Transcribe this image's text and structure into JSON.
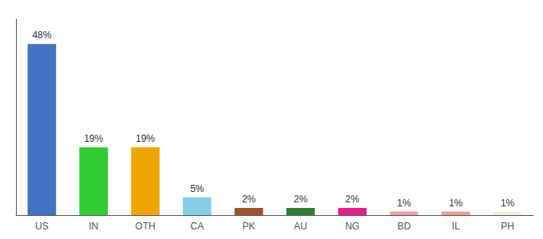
{
  "chart_data": {
    "type": "bar",
    "categories": [
      "US",
      "IN",
      "OTH",
      "CA",
      "PK",
      "AU",
      "NG",
      "BD",
      "IL",
      "PH"
    ],
    "values": [
      48,
      19,
      19,
      5,
      2,
      2,
      2,
      1,
      1,
      1
    ],
    "value_labels": [
      "48%",
      "19%",
      "19%",
      "5%",
      "2%",
      "2%",
      "2%",
      "1%",
      "1%",
      "1%"
    ],
    "colors": [
      "#4472c4",
      "#33cc33",
      "#f0a500",
      "#87ceeb",
      "#a0522d",
      "#2e7d32",
      "#e91e8c",
      "#f4a0a0",
      "#e8a090",
      "#f5f0d8"
    ],
    "ylim": [
      0,
      55
    ],
    "data_labels": true,
    "tick_labels": "x",
    "grid": false
  }
}
